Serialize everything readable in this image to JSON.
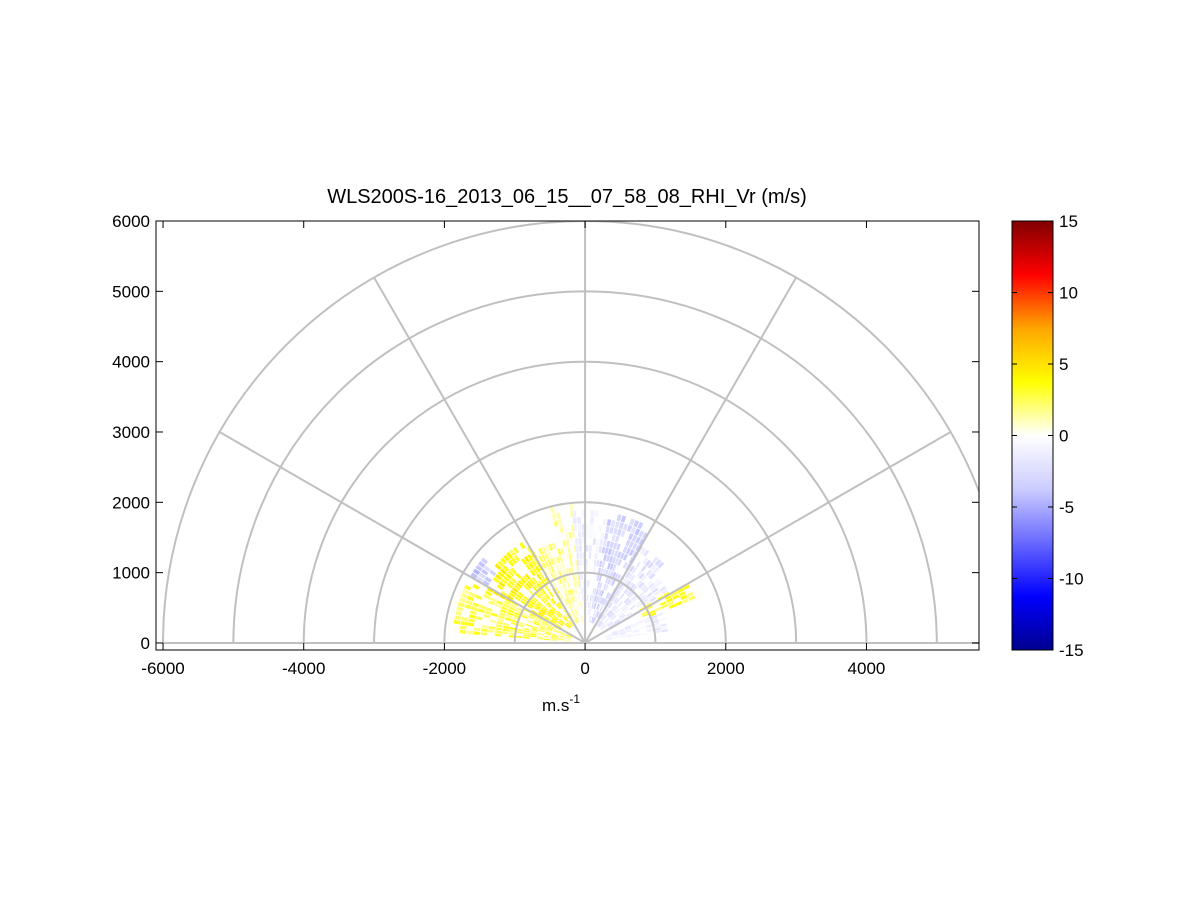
{
  "figure": {
    "title": "WLS200S-16_2013_06_15__07_58_08_RHI_Vr (m/s)",
    "xlabel": "m.s",
    "xlabel_superscript": "-1"
  },
  "chart_data": {
    "type": "heatmap",
    "projection": "polar-semicircle (RHI scan)",
    "title": "WLS200S-16_2013_06_15__07_58_08_RHI_Vr (m/s)",
    "xlabel": "m.s-1",
    "ylabel": "",
    "xlim": [
      -6100,
      5600
    ],
    "ylim": [
      -100,
      6000
    ],
    "x_ticks": [
      -6000,
      -4000,
      -2000,
      0,
      2000,
      4000
    ],
    "x_tick_labels": [
      "-6000",
      "-4000",
      "-2000",
      "0",
      "2000",
      "4000"
    ],
    "y_ticks": [
      0,
      1000,
      2000,
      3000,
      4000,
      5000,
      6000
    ],
    "y_tick_labels": [
      "0",
      "1000",
      "2000",
      "3000",
      "4000",
      "5000",
      "6000"
    ],
    "polar_grid": {
      "range_rings": [
        1000,
        2000,
        3000,
        4000,
        5000,
        6000
      ],
      "radial_spokes_deg": [
        0,
        30,
        60,
        90,
        120,
        150,
        180
      ]
    },
    "colorbar": {
      "min": -15,
      "max": 15,
      "ticks": [
        15,
        10,
        5,
        0,
        -5,
        -10,
        -15
      ],
      "tick_labels": [
        "15",
        "10",
        "5",
        "0",
        "-5",
        "-10",
        "-15"
      ],
      "colors": [
        "#00008f",
        "#0000ff",
        "#6868ff",
        "#ccccff",
        "#ffffff",
        "#ffff00",
        "#ffa500",
        "#ff0000",
        "#800000"
      ]
    },
    "data_cells_note": "radial velocity cells from ~200 m to ~2100 m range; left (~140-170 deg) mostly positive 1-4 m/s (yellow/orange), right (~20-60 deg) mixed: -1 to -4 m/s near 60-85 deg, +2 to +4 m/s near 20-30 deg",
    "sectors": [
      {
        "az_from": 152,
        "az_to": 175,
        "r_from": 200,
        "r_to": 1900,
        "v": 2.5
      },
      {
        "az_from": 140,
        "az_to": 152,
        "r_from": 400,
        "r_to": 1600,
        "v": 4.0
      },
      {
        "az_from": 140,
        "az_to": 150,
        "r_from": 1600,
        "r_to": 1900,
        "v": -3.5
      },
      {
        "az_from": 120,
        "az_to": 140,
        "r_from": 300,
        "r_to": 1700,
        "v": 3.5
      },
      {
        "az_from": 105,
        "az_to": 120,
        "r_from": 300,
        "r_to": 1500,
        "v": 1.5
      },
      {
        "az_from": 95,
        "az_to": 105,
        "r_from": 300,
        "r_to": 2000,
        "v": 0.8
      },
      {
        "az_from": 80,
        "az_to": 95,
        "r_from": 300,
        "r_to": 1900,
        "v": -1.0
      },
      {
        "az_from": 60,
        "az_to": 80,
        "r_from": 300,
        "r_to": 1900,
        "v": -3.0
      },
      {
        "az_from": 45,
        "az_to": 60,
        "r_from": 300,
        "r_to": 1600,
        "v": -2.0
      },
      {
        "az_from": 30,
        "az_to": 45,
        "r_from": 300,
        "r_to": 1400,
        "v": -1.5
      },
      {
        "az_from": 22,
        "az_to": 32,
        "r_from": 900,
        "r_to": 1700,
        "v": 3.0
      },
      {
        "az_from": 8,
        "az_to": 22,
        "r_from": 300,
        "r_to": 1200,
        "v": -1.2
      }
    ]
  }
}
